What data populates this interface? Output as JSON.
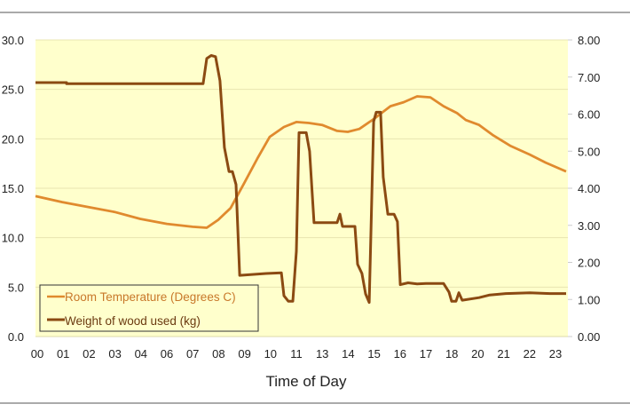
{
  "chart_data": {
    "type": "line",
    "title": "",
    "xlabel": "Time of Day",
    "ylabel_left": "",
    "ylabel_right": "",
    "categories": [
      "00",
      "01",
      "02",
      "03",
      "04",
      "06",
      "07",
      "08",
      "09",
      "10",
      "11",
      "13",
      "14",
      "15",
      "16",
      "17",
      "18",
      "20",
      "21",
      "22",
      "23"
    ],
    "x_note": "x values are positions in category-label index units",
    "xlim": [
      0,
      20.55
    ],
    "ylim_left": [
      0,
      30
    ],
    "ylim_right": [
      0,
      8
    ],
    "left_ticks": [
      "0.0",
      "5.0",
      "10.0",
      "15.0",
      "20.0",
      "25.0",
      "30.0"
    ],
    "right_ticks": [
      "0.00",
      "1.00",
      "2.00",
      "3.00",
      "4.00",
      "5.00",
      "6.00",
      "7.00",
      "8.00"
    ],
    "grid": true,
    "legend_position": "bottom-left",
    "series": [
      {
        "name": "Room Temperature (Degrees C)",
        "axis": "left",
        "color": "#E08A2E",
        "points": [
          [
            0,
            14.2
          ],
          [
            1.03,
            13.6
          ],
          [
            2.05,
            13.1
          ],
          [
            3.05,
            12.6
          ],
          [
            4.04,
            11.9
          ],
          [
            5.07,
            11.4
          ],
          [
            6.06,
            11.1
          ],
          [
            6.61,
            11.0
          ],
          [
            7.05,
            11.8
          ],
          [
            7.53,
            13.0
          ],
          [
            8.05,
            15.5
          ],
          [
            8.56,
            18.0
          ],
          [
            9.04,
            20.2
          ],
          [
            9.59,
            21.2
          ],
          [
            10.07,
            21.7
          ],
          [
            10.55,
            21.6
          ],
          [
            11.06,
            21.4
          ],
          [
            11.64,
            20.8
          ],
          [
            12.05,
            20.7
          ],
          [
            12.5,
            21.0
          ],
          [
            13.05,
            22.0
          ],
          [
            13.7,
            23.3
          ],
          [
            14.21,
            23.7
          ],
          [
            14.73,
            24.3
          ],
          [
            15.24,
            24.2
          ],
          [
            15.75,
            23.3
          ],
          [
            16.27,
            22.6
          ],
          [
            16.61,
            21.9
          ],
          [
            17.12,
            21.4
          ],
          [
            17.64,
            20.4
          ],
          [
            18.32,
            19.3
          ],
          [
            19.08,
            18.4
          ],
          [
            19.69,
            17.6
          ],
          [
            20.48,
            16.7
          ]
        ]
      },
      {
        "name": "Weight of wood used (kg)",
        "axis": "right",
        "color": "#8B4A12",
        "points": [
          [
            0,
            6.85
          ],
          [
            1.2,
            6.85
          ],
          [
            1.2,
            6.82
          ],
          [
            6.47,
            6.82
          ],
          [
            6.61,
            7.5
          ],
          [
            6.78,
            7.58
          ],
          [
            6.95,
            7.55
          ],
          [
            7.12,
            6.9
          ],
          [
            7.29,
            5.1
          ],
          [
            7.47,
            4.45
          ],
          [
            7.6,
            4.45
          ],
          [
            7.74,
            4.1
          ],
          [
            7.88,
            1.65
          ],
          [
            8.9,
            1.7
          ],
          [
            9.49,
            1.72
          ],
          [
            9.59,
            1.1
          ],
          [
            9.76,
            0.95
          ],
          [
            9.93,
            0.95
          ],
          [
            10.07,
            2.3
          ],
          [
            10.17,
            5.5
          ],
          [
            10.45,
            5.5
          ],
          [
            10.58,
            5.0
          ],
          [
            10.75,
            3.07
          ],
          [
            11.64,
            3.07
          ],
          [
            11.75,
            3.3
          ],
          [
            11.85,
            2.97
          ],
          [
            12.33,
            2.97
          ],
          [
            12.43,
            1.95
          ],
          [
            12.6,
            1.7
          ],
          [
            12.74,
            1.15
          ],
          [
            12.88,
            0.92
          ],
          [
            13.05,
            5.8
          ],
          [
            13.15,
            6.05
          ],
          [
            13.32,
            6.05
          ],
          [
            13.42,
            4.3
          ],
          [
            13.6,
            3.3
          ],
          [
            13.84,
            3.3
          ],
          [
            13.97,
            3.1
          ],
          [
            14.08,
            1.4
          ],
          [
            14.38,
            1.45
          ],
          [
            14.73,
            1.42
          ],
          [
            15.07,
            1.43
          ],
          [
            15.75,
            1.43
          ],
          [
            15.96,
            1.2
          ],
          [
            16.06,
            0.95
          ],
          [
            16.23,
            0.95
          ],
          [
            16.34,
            1.18
          ],
          [
            16.47,
            0.98
          ],
          [
            17.12,
            1.05
          ],
          [
            17.53,
            1.12
          ],
          [
            18.15,
            1.16
          ],
          [
            19.08,
            1.18
          ],
          [
            19.86,
            1.16
          ],
          [
            20.48,
            1.16
          ]
        ]
      }
    ]
  }
}
